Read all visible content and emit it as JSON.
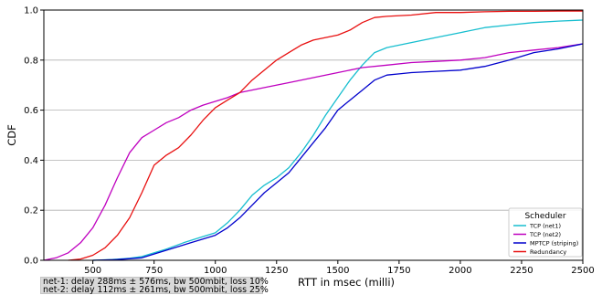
{
  "chart_data": {
    "type": "line",
    "xlabel": "RTT in msec (milli)",
    "ylabel": "CDF",
    "xlim": [
      300,
      2500
    ],
    "ylim": [
      0,
      1
    ],
    "xticks": [
      500,
      750,
      1000,
      1250,
      1500,
      1750,
      2000,
      2250,
      2500
    ],
    "yticks": [
      0.0,
      0.2,
      0.4,
      0.6,
      0.8,
      1.0
    ],
    "ytick_labels": [
      "0.0",
      "0.2",
      "0.4",
      "0.6",
      "0.8",
      "1.0"
    ],
    "grid": "horizontal",
    "legend": {
      "title": "Scheduler",
      "placement": "bottom-right"
    },
    "series": [
      {
        "name": "TCP (net1)",
        "color": "#17becf",
        "points": [
          [
            500,
            0
          ],
          [
            580,
            0.003
          ],
          [
            650,
            0.008
          ],
          [
            700,
            0.015
          ],
          [
            800,
            0.045
          ],
          [
            870,
            0.07
          ],
          [
            950,
            0.095
          ],
          [
            1000,
            0.11
          ],
          [
            1050,
            0.15
          ],
          [
            1100,
            0.2
          ],
          [
            1150,
            0.26
          ],
          [
            1200,
            0.3
          ],
          [
            1250,
            0.33
          ],
          [
            1300,
            0.37
          ],
          [
            1350,
            0.43
          ],
          [
            1400,
            0.5
          ],
          [
            1450,
            0.58
          ],
          [
            1500,
            0.65
          ],
          [
            1550,
            0.72
          ],
          [
            1600,
            0.78
          ],
          [
            1650,
            0.83
          ],
          [
            1700,
            0.85
          ],
          [
            1800,
            0.87
          ],
          [
            1900,
            0.89
          ],
          [
            2000,
            0.91
          ],
          [
            2100,
            0.93
          ],
          [
            2200,
            0.94
          ],
          [
            2300,
            0.95
          ],
          [
            2400,
            0.956
          ],
          [
            2500,
            0.96
          ]
        ]
      },
      {
        "name": "TCP (net2)",
        "color": "#bf00bf",
        "points": [
          [
            300,
            0
          ],
          [
            350,
            0.01
          ],
          [
            400,
            0.03
          ],
          [
            450,
            0.07
          ],
          [
            500,
            0.13
          ],
          [
            550,
            0.22
          ],
          [
            600,
            0.33
          ],
          [
            650,
            0.43
          ],
          [
            700,
            0.49
          ],
          [
            750,
            0.52
          ],
          [
            800,
            0.55
          ],
          [
            850,
            0.57
          ],
          [
            900,
            0.6
          ],
          [
            950,
            0.62
          ],
          [
            1000,
            0.635
          ],
          [
            1050,
            0.65
          ],
          [
            1100,
            0.67
          ],
          [
            1200,
            0.69
          ],
          [
            1300,
            0.71
          ],
          [
            1400,
            0.73
          ],
          [
            1500,
            0.75
          ],
          [
            1600,
            0.77
          ],
          [
            1700,
            0.78
          ],
          [
            1800,
            0.79
          ],
          [
            1900,
            0.795
          ],
          [
            2000,
            0.8
          ],
          [
            2100,
            0.81
          ],
          [
            2200,
            0.83
          ],
          [
            2300,
            0.84
          ],
          [
            2400,
            0.85
          ],
          [
            2500,
            0.865
          ]
        ]
      },
      {
        "name": "MPTCP (striping)",
        "color": "#0000cc",
        "points": [
          [
            500,
            0
          ],
          [
            600,
            0.003
          ],
          [
            700,
            0.01
          ],
          [
            800,
            0.04
          ],
          [
            900,
            0.07
          ],
          [
            1000,
            0.1
          ],
          [
            1050,
            0.13
          ],
          [
            1100,
            0.17
          ],
          [
            1150,
            0.22
          ],
          [
            1200,
            0.27
          ],
          [
            1250,
            0.31
          ],
          [
            1300,
            0.35
          ],
          [
            1350,
            0.41
          ],
          [
            1400,
            0.47
          ],
          [
            1450,
            0.53
          ],
          [
            1500,
            0.6
          ],
          [
            1550,
            0.64
          ],
          [
            1600,
            0.68
          ],
          [
            1650,
            0.72
          ],
          [
            1700,
            0.74
          ],
          [
            1750,
            0.745
          ],
          [
            1800,
            0.75
          ],
          [
            1900,
            0.755
          ],
          [
            2000,
            0.76
          ],
          [
            2100,
            0.775
          ],
          [
            2200,
            0.8
          ],
          [
            2300,
            0.83
          ],
          [
            2400,
            0.845
          ],
          [
            2500,
            0.865
          ]
        ]
      },
      {
        "name": "Redundancy",
        "color": "#e81010",
        "points": [
          [
            400,
            0
          ],
          [
            450,
            0.005
          ],
          [
            500,
            0.02
          ],
          [
            550,
            0.05
          ],
          [
            600,
            0.1
          ],
          [
            650,
            0.17
          ],
          [
            700,
            0.27
          ],
          [
            750,
            0.38
          ],
          [
            800,
            0.42
          ],
          [
            850,
            0.45
          ],
          [
            900,
            0.5
          ],
          [
            950,
            0.56
          ],
          [
            1000,
            0.61
          ],
          [
            1050,
            0.64
          ],
          [
            1100,
            0.67
          ],
          [
            1150,
            0.72
          ],
          [
            1200,
            0.76
          ],
          [
            1250,
            0.8
          ],
          [
            1300,
            0.83
          ],
          [
            1350,
            0.86
          ],
          [
            1400,
            0.88
          ],
          [
            1450,
            0.89
          ],
          [
            1500,
            0.9
          ],
          [
            1550,
            0.92
          ],
          [
            1600,
            0.95
          ],
          [
            1650,
            0.97
          ],
          [
            1700,
            0.975
          ],
          [
            1800,
            0.98
          ],
          [
            1900,
            0.99
          ],
          [
            2000,
            0.99
          ],
          [
            2100,
            0.993
          ],
          [
            2200,
            0.995
          ],
          [
            2300,
            0.995
          ],
          [
            2400,
            0.996
          ],
          [
            2500,
            0.996
          ]
        ]
      }
    ]
  },
  "note": {
    "line1": "net-1: delay 288ms ± 576ms, bw 500mbit, loss 10%",
    "line2": "net-2: delay 112ms ± 261ms, bw 500mbit, loss 25%"
  }
}
